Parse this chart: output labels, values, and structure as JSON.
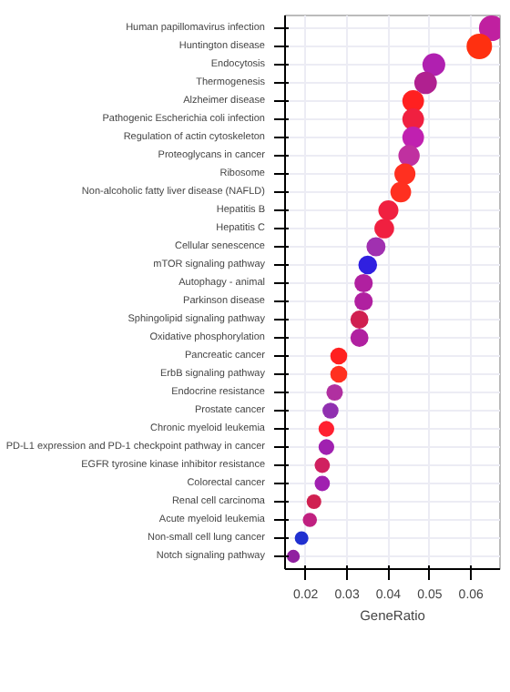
{
  "chart_data": {
    "type": "bubble",
    "xlabel": "GeneRatio",
    "categories": [
      "Human papillomavirus infection",
      "Huntington disease",
      "Endocytosis",
      "Thermogenesis",
      "Alzheimer disease",
      "Pathogenic Escherichia coli infection",
      "Regulation of actin cytoskeleton",
      "Proteoglycans in cancer",
      "Ribosome",
      "Non-alcoholic fatty liver disease (NAFLD)",
      "Hepatitis B",
      "Hepatitis C",
      "Cellular senescence",
      "mTOR signaling pathway",
      "Autophagy - animal",
      "Parkinson disease",
      "Sphingolipid signaling pathway",
      "Oxidative phosphorylation",
      "Pancreatic cancer",
      "ErbB signaling pathway",
      "Endocrine resistance",
      "Prostate cancer",
      "Chronic myeloid leukemia",
      "PD-L1 expression and PD-1 checkpoint pathway in cancer",
      "EGFR tyrosine kinase inhibitor resistance",
      "Colorectal cancer",
      "Renal cell carcinoma",
      "Acute myeloid leukemia",
      "Non-small cell lung cancer",
      "Notch signaling pathway"
    ],
    "orientation": "horizontal",
    "values": [
      0.065,
      0.062,
      0.051,
      0.049,
      0.046,
      0.046,
      0.046,
      0.045,
      0.044,
      0.043,
      0.04,
      0.039,
      0.037,
      0.035,
      0.034,
      0.034,
      0.033,
      0.033,
      0.028,
      0.028,
      0.027,
      0.026,
      0.025,
      0.025,
      0.024,
      0.024,
      0.022,
      0.021,
      0.019,
      0.017
    ],
    "sizes": [
      1,
      1,
      0.8,
      0.78,
      0.72,
      0.72,
      0.72,
      0.7,
      0.68,
      0.66,
      0.62,
      0.6,
      0.56,
      0.54,
      0.52,
      0.52,
      0.5,
      0.5,
      0.44,
      0.44,
      0.42,
      0.4,
      0.38,
      0.38,
      0.36,
      0.36,
      0.33,
      0.31,
      0.29,
      0.26
    ],
    "colors": [
      "#c020a0",
      "#ff3010",
      "#b020b0",
      "#b02090",
      "#ff2020",
      "#f02040",
      "#c020b0",
      "#c030a0",
      "#ff3020",
      "#ff3020",
      "#f02040",
      "#f02040",
      "#a030b0",
      "#3020e0",
      "#b020a0",
      "#b020a0",
      "#d02050",
      "#b020a0",
      "#ff2020",
      "#ff3020",
      "#b030a0",
      "#9030b0",
      "#ff2030",
      "#a020b0",
      "#d02060",
      "#a020b0",
      "#d02050",
      "#c02080",
      "#2030d0",
      "#9020a0"
    ],
    "xlim": [
      0.015,
      0.067
    ],
    "xticks": [
      0.02,
      0.03,
      0.04,
      0.05,
      0.06
    ],
    "grid": true
  }
}
